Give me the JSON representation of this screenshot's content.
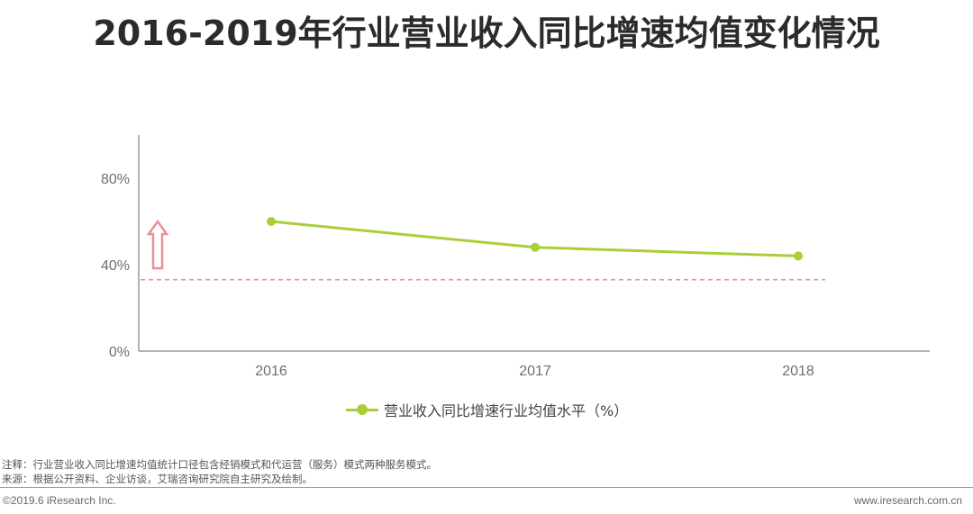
{
  "title": "2016-2019年行业营业收入同比增速均值变化情况",
  "chart_data": {
    "type": "line",
    "categories": [
      "2016",
      "2017",
      "2018"
    ],
    "series": [
      {
        "name": "营业收入同比增速行业均值水平（%）",
        "values": [
          60,
          48,
          44
        ],
        "color": "#a9cf38"
      }
    ],
    "y_ticks": [
      "0%",
      "40%",
      "80%"
    ],
    "ylim": [
      0,
      100
    ],
    "reference_line": {
      "value": 33,
      "style": "dashed",
      "color": "#e8909a"
    },
    "annotation": {
      "type": "up-arrow",
      "color": "#e8909a"
    },
    "grid": false,
    "legend_position": "bottom"
  },
  "notes": {
    "note": "注释：行业营业收入同比增速均值统计口径包含经销模式和代运营（服务）模式两种服务模式。",
    "source": "来源：根据公开资料、企业访谈，艾瑞咨询研究院自主研究及绘制。"
  },
  "footer": {
    "left": "©2019.6 iResearch Inc.",
    "right": "www.iresearch.com.cn"
  }
}
